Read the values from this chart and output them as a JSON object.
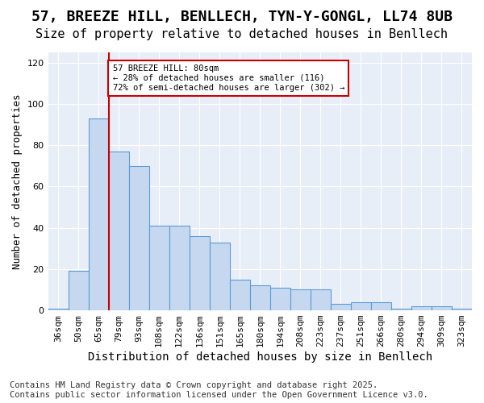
{
  "title": "57, BREEZE HILL, BENLLECH, TYN-Y-GONGL, LL74 8UB",
  "subtitle": "Size of property relative to detached houses in Benllech",
  "xlabel": "Distribution of detached houses by size in Benllech",
  "ylabel": "Number of detached properties",
  "categories": [
    "36sqm",
    "50sqm",
    "65sqm",
    "79sqm",
    "93sqm",
    "108sqm",
    "122sqm",
    "136sqm",
    "151sqm",
    "165sqm",
    "180sqm",
    "194sqm",
    "208sqm",
    "223sqm",
    "237sqm",
    "251sqm",
    "266sqm",
    "280sqm",
    "294sqm",
    "309sqm",
    "323sqm"
  ],
  "bar_values": [
    1,
    19,
    93,
    77,
    70,
    41,
    41,
    36,
    33,
    15,
    12,
    11,
    10,
    10,
    3,
    4,
    4,
    1,
    2,
    2,
    1
  ],
  "bar_color": "#c5d8f0",
  "bar_edge_color": "#5b9bd5",
  "annotation_text": "57 BREEZE HILL: 80sqm\n← 28% of detached houses are smaller (116)\n72% of semi-detached houses are larger (302) →",
  "annotation_box_color": "#ffffff",
  "annotation_box_edge": "#cc0000",
  "red_line_color": "#cc0000",
  "ylim": [
    0,
    125
  ],
  "yticks": [
    0,
    20,
    40,
    60,
    80,
    100,
    120
  ],
  "background_color": "#e8eef7",
  "footer_line1": "Contains HM Land Registry data © Crown copyright and database right 2025.",
  "footer_line2": "Contains public sector information licensed under the Open Government Licence v3.0.",
  "title_fontsize": 13,
  "subtitle_fontsize": 11,
  "xlabel_fontsize": 10,
  "ylabel_fontsize": 9,
  "tick_fontsize": 8,
  "footer_fontsize": 7.5
}
